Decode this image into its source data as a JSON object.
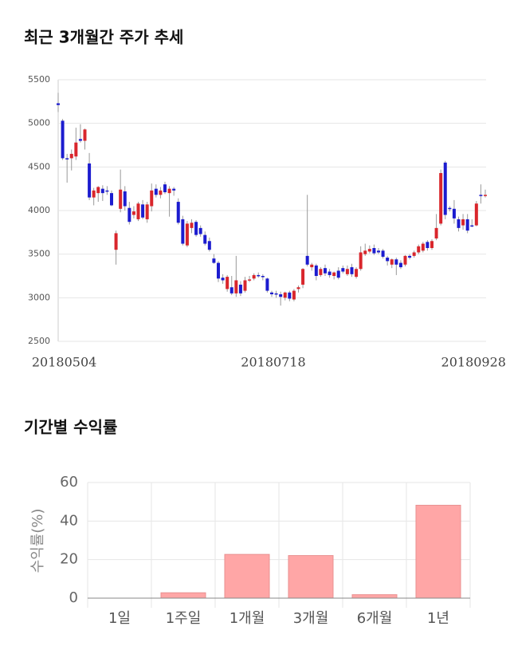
{
  "chart_data": [
    {
      "type": "candlestick",
      "title": "최근 3개월간 주가 추세",
      "categories": [
        null,
        "20180504",
        null,
        null,
        null,
        null,
        null,
        null,
        null,
        null,
        null,
        null,
        null,
        null,
        null,
        null,
        null,
        null,
        null,
        null,
        null,
        null,
        null,
        null,
        null,
        null,
        null,
        null,
        null,
        null,
        null,
        null,
        null,
        null,
        null,
        null,
        null,
        null,
        null,
        null,
        null,
        null,
        null,
        null,
        null,
        null,
        null,
        null,
        "20180718",
        null,
        null,
        null,
        null,
        null,
        null,
        null,
        null,
        null,
        null,
        null,
        null,
        null,
        null,
        null,
        null,
        null,
        null,
        null,
        null,
        null,
        null,
        null,
        null,
        null,
        null,
        null,
        null,
        null,
        null,
        null,
        null,
        null,
        null,
        null,
        null,
        null,
        null,
        null,
        null,
        null,
        null,
        null,
        null,
        "20180928",
        null,
        null,
        null
      ],
      "open": [
        5230,
        5030,
        4600,
        4600,
        4620,
        4820,
        4800,
        4540,
        4150,
        4200,
        4250,
        4230,
        4200,
        3550,
        4020,
        4220,
        4030,
        3950,
        3900,
        4070,
        3900,
        4050,
        4250,
        4180,
        4300,
        4200,
        4250,
        4100,
        3900,
        3600,
        3800,
        3870,
        3800,
        3720,
        3650,
        3450,
        3400,
        3230,
        3100,
        3120,
        3050,
        3150,
        3080,
        3200,
        3220,
        3260,
        3250,
        3220,
        3060,
        3050,
        3040,
        3000,
        3060,
        2980,
        3100,
        3150,
        3480,
        3350,
        3370,
        3260,
        3340,
        3300,
        3250,
        3310,
        3340,
        3270,
        3350,
        3240,
        3330,
        3500,
        3530,
        3570,
        3540,
        3540,
        3460,
        3380,
        3440,
        3400,
        3380,
        3480,
        3480,
        3520,
        3540,
        3640,
        3570,
        3680,
        3850,
        4550,
        4030,
        4020,
        3900,
        3830,
        3900,
        3830,
        3830,
        4180,
        4170
      ],
      "high": [
        5350,
        5050,
        4650,
        4700,
        4950,
        4990,
        4940,
        4660,
        4260,
        4280,
        4290,
        4280,
        4230,
        3770,
        4470,
        4280,
        4100,
        4050,
        4100,
        4120,
        4100,
        4310,
        4300,
        4270,
        4330,
        4280,
        4270,
        4140,
        3940,
        3880,
        3900,
        3890,
        3830,
        3760,
        3690,
        3500,
        3420,
        3270,
        3260,
        3250,
        3480,
        3190,
        3240,
        3250,
        3280,
        3290,
        3270,
        3230,
        3080,
        3080,
        3070,
        3070,
        3080,
        3100,
        3140,
        3340,
        4180,
        3400,
        3390,
        3350,
        3380,
        3330,
        3300,
        3350,
        3370,
        3370,
        3390,
        3350,
        3590,
        3620,
        3600,
        3610,
        3570,
        3560,
        3480,
        3450,
        3460,
        3430,
        3490,
        3500,
        3540,
        3610,
        3640,
        3660,
        3670,
        3960,
        4470,
        4570,
        4050,
        4120,
        3930,
        3960,
        3960,
        3900,
        4110,
        4300,
        4240
      ],
      "low": [
        5130,
        4580,
        4320,
        4460,
        4580,
        4780,
        4700,
        4120,
        4060,
        4100,
        4110,
        4180,
        4050,
        3380,
        3980,
        4000,
        3840,
        3910,
        3880,
        3900,
        3860,
        3990,
        4150,
        4140,
        4190,
        3930,
        4170,
        3840,
        3600,
        3580,
        3740,
        3700,
        3700,
        3600,
        3530,
        3390,
        3180,
        3160,
        3070,
        3030,
        3010,
        3020,
        3060,
        3180,
        3200,
        3230,
        3200,
        3060,
        3010,
        3000,
        2910,
        2970,
        2960,
        2960,
        3060,
        3110,
        3360,
        3310,
        3200,
        3240,
        3250,
        3230,
        3210,
        3210,
        3280,
        3250,
        3240,
        3220,
        3310,
        3480,
        3510,
        3490,
        3500,
        3450,
        3370,
        3340,
        3260,
        3330,
        3360,
        3440,
        3460,
        3500,
        3520,
        3540,
        3550,
        3660,
        3830,
        3900,
        3990,
        3850,
        3760,
        3780,
        3740,
        3810,
        3820,
        4080,
        4150
      ],
      "close": [
        5210,
        4600,
        4590,
        4650,
        4780,
        4800,
        4930,
        4150,
        4230,
        4270,
        4200,
        4220,
        4060,
        3740,
        4240,
        4050,
        3870,
        3990,
        4080,
        3920,
        4070,
        4230,
        4180,
        4230,
        4210,
        4250,
        4230,
        3860,
        3620,
        3850,
        3860,
        3720,
        3730,
        3620,
        3550,
        3400,
        3220,
        3200,
        3240,
        3050,
        3200,
        3050,
        3200,
        3210,
        3260,
        3250,
        3240,
        3080,
        3040,
        3040,
        3010,
        3060,
        2990,
        3080,
        3120,
        3330,
        3380,
        3380,
        3250,
        3330,
        3280,
        3260,
        3290,
        3230,
        3300,
        3330,
        3270,
        3330,
        3520,
        3540,
        3560,
        3510,
        3520,
        3470,
        3420,
        3440,
        3380,
        3350,
        3480,
        3460,
        3520,
        3590,
        3620,
        3570,
        3650,
        3800,
        4430,
        3950,
        4020,
        3910,
        3800,
        3900,
        3770,
        3820,
        4080,
        4170,
        4180
      ],
      "up_color": "#d9262c",
      "down_color": "#1c1ccf",
      "ylim": [
        2500,
        5500
      ],
      "yticks": [
        2500,
        3000,
        3500,
        4000,
        4500,
        5000,
        5500
      ],
      "grid": true
    },
    {
      "type": "bar",
      "title": "기간별 수익률",
      "ylabel": "수익률(%)",
      "categories": [
        "1일",
        "1주일",
        "1개월",
        "3개월",
        "6개월",
        "1년"
      ],
      "values": [
        0,
        2.8,
        22.7,
        22.1,
        1.8,
        48.2
      ],
      "color": "#ffa6a6",
      "ylim": [
        0,
        60
      ],
      "yticks": [
        0,
        20,
        40,
        60
      ],
      "grid": true
    }
  ]
}
